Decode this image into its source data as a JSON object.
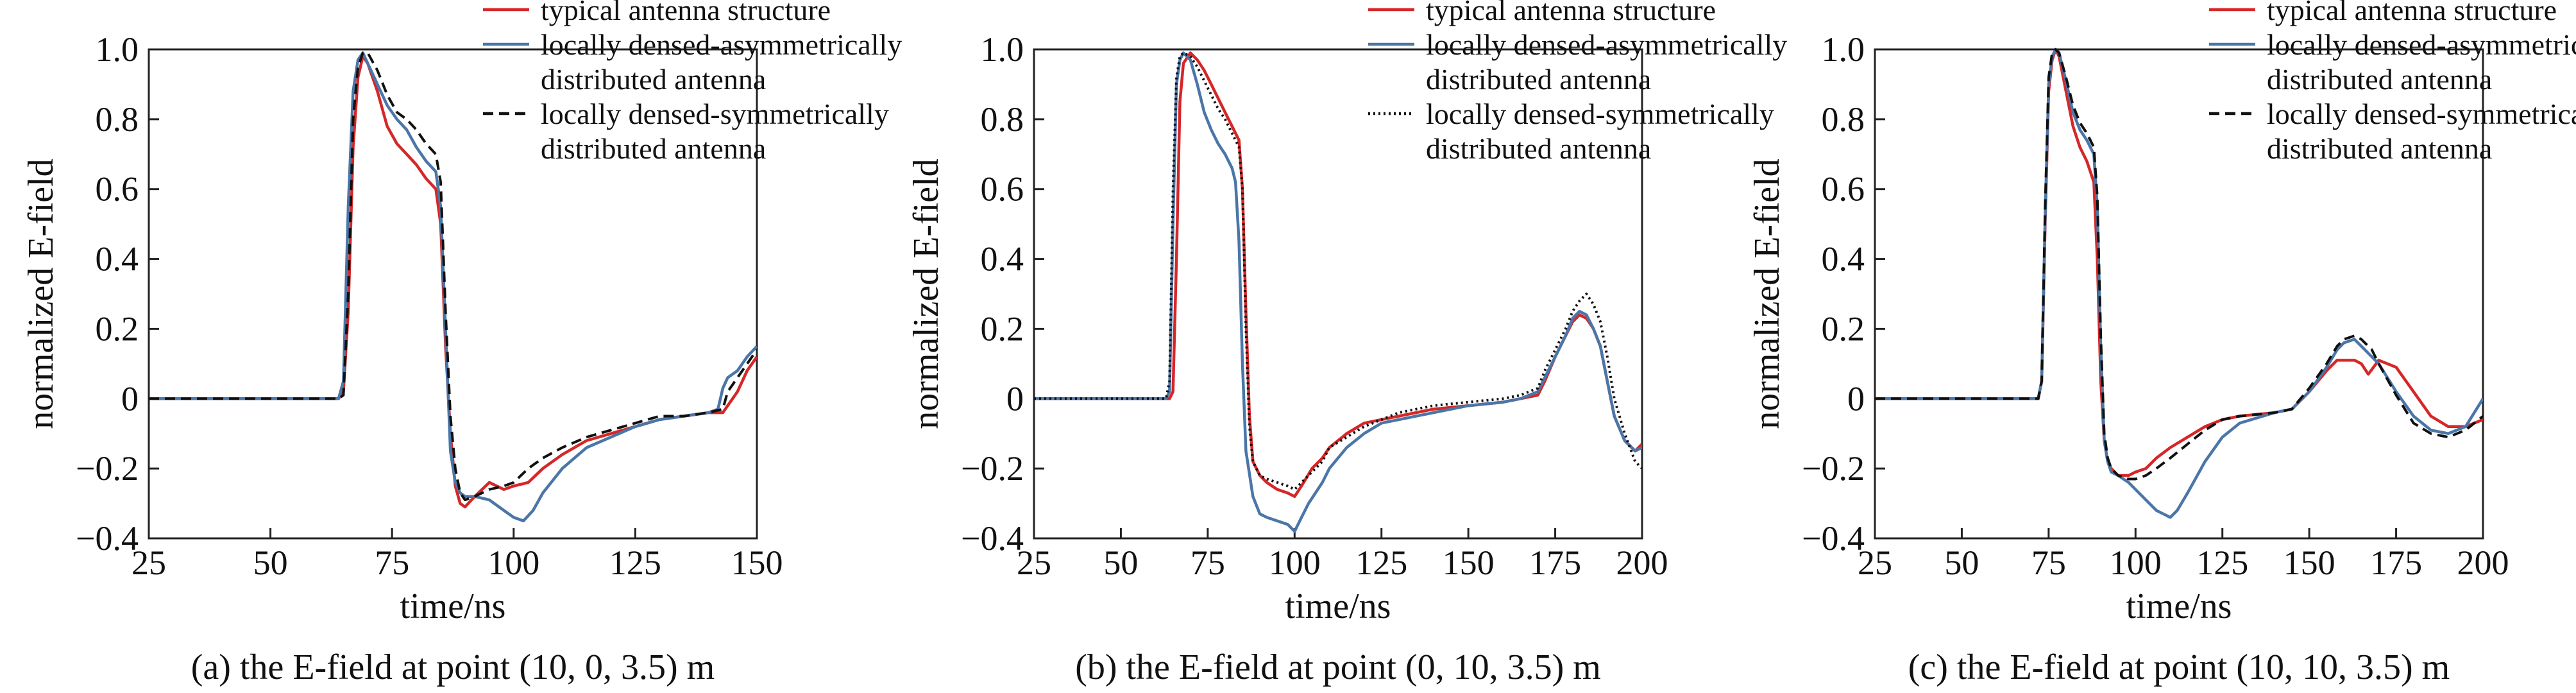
{
  "figure": {
    "legend_labels": [
      "typical antenna structure",
      "locally densed-asymmetrically distributed antenna",
      "locally densed-symmetrically distributed antenna"
    ]
  },
  "colors": {
    "typical": "#d62728",
    "asymmetric": "#4a76a8",
    "symmetric": "#111111",
    "axis": "#222222"
  },
  "chart_data": [
    {
      "type": "line",
      "caption": "(a) the E-field at point (10, 0, 3.5) m",
      "xlabel": "time/ns",
      "ylabel": "normalized E-field",
      "xlim": [
        25,
        150
      ],
      "ylim": [
        -0.4,
        1.0
      ],
      "xticks": [
        25,
        50,
        75,
        100,
        125,
        150
      ],
      "yticks": [
        -0.4,
        -0.2,
        0,
        0.2,
        0.4,
        0.6,
        0.8,
        1.0
      ],
      "ytick_labels": [
        "−0.4",
        "−0.2",
        "0",
        "0.2",
        "0.4",
        "0.6",
        "0.8",
        "1.0"
      ],
      "grid": false,
      "legend_position": "top-right",
      "series": [
        {
          "name": "typical antenna structure",
          "style": "solid",
          "x": [
            25,
            64,
            65,
            66,
            67,
            68,
            69,
            70,
            72,
            74,
            76,
            78,
            80,
            82,
            84,
            85,
            86,
            87,
            88,
            89,
            90,
            92,
            95,
            98,
            100,
            103,
            106,
            110,
            115,
            120,
            125,
            130,
            135,
            140,
            143,
            144,
            146,
            148,
            150
          ],
          "y": [
            0,
            0,
            0.02,
            0.25,
            0.72,
            0.92,
            0.98,
            0.96,
            0.88,
            0.78,
            0.73,
            0.7,
            0.67,
            0.63,
            0.6,
            0.5,
            0.15,
            -0.1,
            -0.25,
            -0.3,
            -0.31,
            -0.28,
            -0.24,
            -0.26,
            -0.25,
            -0.24,
            -0.2,
            -0.16,
            -0.12,
            -0.1,
            -0.08,
            -0.06,
            -0.05,
            -0.04,
            -0.04,
            -0.02,
            0.02,
            0.08,
            0.12
          ]
        },
        {
          "name": "locally densed-asymmetrically distributed antenna",
          "style": "solid",
          "x": [
            25,
            63,
            64,
            65,
            66,
            67,
            68,
            69,
            70,
            72,
            74,
            76,
            78,
            80,
            82,
            84,
            85,
            86,
            87,
            88,
            89,
            90,
            92,
            95,
            98,
            100,
            102,
            104,
            106,
            110,
            115,
            120,
            125,
            130,
            135,
            140,
            142,
            143,
            144,
            146,
            148,
            150
          ],
          "y": [
            0,
            0,
            0,
            0.05,
            0.55,
            0.88,
            0.97,
            0.99,
            0.96,
            0.9,
            0.84,
            0.8,
            0.77,
            0.72,
            0.68,
            0.65,
            0.55,
            0.2,
            -0.15,
            -0.24,
            -0.27,
            -0.28,
            -0.28,
            -0.29,
            -0.32,
            -0.34,
            -0.35,
            -0.32,
            -0.27,
            -0.2,
            -0.14,
            -0.11,
            -0.08,
            -0.06,
            -0.05,
            -0.04,
            -0.03,
            0.03,
            0.06,
            0.08,
            0.12,
            0.15
          ]
        },
        {
          "name": "locally densed-symmetrically distributed antenna",
          "style": "dashed",
          "x": [
            25,
            64,
            65,
            66,
            67,
            68,
            69,
            70,
            72,
            74,
            76,
            78,
            80,
            82,
            84,
            85,
            86,
            87,
            88,
            89,
            90,
            92,
            95,
            98,
            100,
            103,
            106,
            110,
            115,
            120,
            125,
            130,
            135,
            140,
            143,
            144,
            146,
            148,
            150
          ],
          "y": [
            0,
            0,
            0.01,
            0.3,
            0.8,
            0.95,
            0.99,
            0.99,
            0.94,
            0.87,
            0.82,
            0.8,
            0.77,
            0.73,
            0.7,
            0.62,
            0.25,
            -0.05,
            -0.2,
            -0.27,
            -0.29,
            -0.28,
            -0.26,
            -0.25,
            -0.24,
            -0.2,
            -0.17,
            -0.14,
            -0.11,
            -0.09,
            -0.07,
            -0.05,
            -0.05,
            -0.04,
            -0.03,
            0.02,
            0.06,
            0.1,
            0.14
          ]
        }
      ]
    },
    {
      "type": "line",
      "caption": "(b) the E-field at point (0, 10, 3.5) m",
      "xlabel": "time/ns",
      "ylabel": "normalized E-field",
      "xlim": [
        25,
        200
      ],
      "ylim": [
        -0.4,
        1.0
      ],
      "xticks": [
        25,
        50,
        75,
        100,
        125,
        150,
        175,
        200
      ],
      "yticks": [
        -0.4,
        -0.2,
        0,
        0.2,
        0.4,
        0.6,
        0.8,
        1.0
      ],
      "ytick_labels": [
        "−0.4",
        "−0.2",
        "0",
        "0.2",
        "0.4",
        "0.6",
        "0.8",
        "1.0"
      ],
      "grid": false,
      "legend_position": "top-right",
      "series": [
        {
          "name": "typical antenna structure",
          "style": "solid",
          "x": [
            25,
            64,
            65,
            66,
            67,
            68,
            70,
            72,
            74,
            76,
            78,
            80,
            82,
            84,
            85,
            86,
            87,
            88,
            90,
            92,
            95,
            98,
            100,
            102,
            105,
            108,
            110,
            115,
            120,
            125,
            130,
            140,
            150,
            160,
            165,
            170,
            172,
            175,
            178,
            180,
            182,
            184,
            186,
            188,
            190,
            192,
            195,
            198,
            200
          ],
          "y": [
            0,
            0,
            0.02,
            0.4,
            0.85,
            0.96,
            0.99,
            0.97,
            0.94,
            0.9,
            0.86,
            0.82,
            0.78,
            0.74,
            0.6,
            0.25,
            -0.05,
            -0.18,
            -0.22,
            -0.24,
            -0.26,
            -0.27,
            -0.28,
            -0.25,
            -0.2,
            -0.17,
            -0.14,
            -0.1,
            -0.07,
            -0.06,
            -0.05,
            -0.03,
            -0.02,
            -0.01,
            0.0,
            0.01,
            0.05,
            0.12,
            0.18,
            0.22,
            0.24,
            0.23,
            0.2,
            0.15,
            0.05,
            -0.05,
            -0.12,
            -0.15,
            -0.13
          ]
        },
        {
          "name": "locally densed-asymmetrically distributed antenna",
          "style": "solid",
          "x": [
            25,
            63,
            64,
            65,
            66,
            67,
            68,
            70,
            72,
            74,
            76,
            78,
            80,
            82,
            83,
            84,
            85,
            86,
            88,
            90,
            92,
            95,
            98,
            100,
            102,
            104,
            106,
            108,
            110,
            115,
            120,
            125,
            130,
            140,
            150,
            160,
            165,
            170,
            172,
            175,
            178,
            180,
            182,
            184,
            186,
            188,
            190,
            192,
            195,
            198,
            200
          ],
          "y": [
            0,
            0,
            0.02,
            0.5,
            0.9,
            0.97,
            0.99,
            0.97,
            0.9,
            0.82,
            0.77,
            0.73,
            0.7,
            0.66,
            0.62,
            0.45,
            0.1,
            -0.15,
            -0.28,
            -0.33,
            -0.34,
            -0.35,
            -0.36,
            -0.38,
            -0.34,
            -0.3,
            -0.27,
            -0.24,
            -0.2,
            -0.14,
            -0.1,
            -0.07,
            -0.06,
            -0.04,
            -0.02,
            -0.01,
            0.0,
            0.02,
            0.06,
            0.12,
            0.18,
            0.23,
            0.25,
            0.24,
            0.2,
            0.15,
            0.05,
            -0.05,
            -0.12,
            -0.15,
            -0.14
          ]
        },
        {
          "name": "locally densed-symmetrically distributed antenna",
          "style": "dotted",
          "x": [
            25,
            63,
            64,
            65,
            66,
            67,
            68,
            70,
            72,
            74,
            76,
            78,
            80,
            82,
            84,
            85,
            86,
            87,
            88,
            90,
            92,
            95,
            98,
            100,
            102,
            105,
            108,
            110,
            115,
            120,
            125,
            130,
            140,
            150,
            160,
            165,
            170,
            172,
            175,
            178,
            180,
            182,
            184,
            186,
            188,
            190,
            192,
            195,
            198,
            200
          ],
          "y": [
            0,
            0,
            0.05,
            0.6,
            0.92,
            0.98,
            0.99,
            0.98,
            0.95,
            0.91,
            0.87,
            0.83,
            0.8,
            0.76,
            0.72,
            0.6,
            0.2,
            -0.08,
            -0.18,
            -0.22,
            -0.23,
            -0.24,
            -0.25,
            -0.26,
            -0.24,
            -0.21,
            -0.18,
            -0.14,
            -0.11,
            -0.08,
            -0.06,
            -0.04,
            -0.02,
            -0.01,
            0.0,
            0.01,
            0.03,
            0.08,
            0.14,
            0.2,
            0.25,
            0.28,
            0.3,
            0.27,
            0.22,
            0.12,
            0.0,
            -0.1,
            -0.18,
            -0.2
          ]
        }
      ]
    },
    {
      "type": "line",
      "caption": "(c) the E-field at point (10, 10, 3.5) m",
      "xlabel": "time/ns",
      "ylabel": "normalized E-field",
      "xlim": [
        25,
        200
      ],
      "ylim": [
        -0.4,
        1.0
      ],
      "xticks": [
        25,
        50,
        75,
        100,
        125,
        150,
        175,
        200
      ],
      "yticks": [
        -0.4,
        -0.2,
        0,
        0.2,
        0.4,
        0.6,
        0.8,
        1.0
      ],
      "ytick_labels": [
        "−0.4",
        "−0.2",
        "0",
        "0.2",
        "0.4",
        "0.6",
        "0.8",
        "1.0"
      ],
      "grid": false,
      "legend_position": "top-right",
      "series": [
        {
          "name": "typical antenna structure",
          "style": "solid",
          "x": [
            25,
            72,
            73,
            74,
            75,
            76,
            77,
            78,
            80,
            82,
            84,
            86,
            88,
            89,
            90,
            91,
            92,
            93,
            95,
            98,
            100,
            103,
            106,
            110,
            115,
            120,
            125,
            130,
            140,
            145,
            150,
            155,
            158,
            160,
            163,
            165,
            167,
            170,
            175,
            180,
            185,
            190,
            195,
            200
          ],
          "y": [
            0,
            0,
            0.05,
            0.5,
            0.88,
            0.97,
            1.0,
            0.98,
            0.88,
            0.78,
            0.72,
            0.68,
            0.62,
            0.4,
            0.05,
            -0.12,
            -0.18,
            -0.2,
            -0.22,
            -0.22,
            -0.21,
            -0.2,
            -0.17,
            -0.14,
            -0.11,
            -0.08,
            -0.06,
            -0.05,
            -0.04,
            -0.03,
            0.02,
            0.08,
            0.11,
            0.11,
            0.11,
            0.1,
            0.07,
            0.11,
            0.09,
            0.02,
            -0.05,
            -0.08,
            -0.08,
            -0.06
          ]
        },
        {
          "name": "locally densed-asymmetrically distributed antenna",
          "style": "solid",
          "x": [
            25,
            72,
            73,
            74,
            75,
            76,
            77,
            78,
            80,
            82,
            84,
            86,
            88,
            89,
            90,
            91,
            92,
            93,
            95,
            98,
            100,
            102,
            104,
            106,
            108,
            110,
            112,
            115,
            120,
            125,
            130,
            140,
            145,
            150,
            155,
            158,
            160,
            163,
            165,
            170,
            175,
            180,
            185,
            190,
            195,
            200
          ],
          "y": [
            0,
            0,
            0.05,
            0.52,
            0.9,
            0.98,
            1.0,
            0.99,
            0.91,
            0.82,
            0.77,
            0.74,
            0.7,
            0.55,
            0.15,
            -0.12,
            -0.18,
            -0.21,
            -0.22,
            -0.24,
            -0.26,
            -0.28,
            -0.3,
            -0.32,
            -0.33,
            -0.34,
            -0.32,
            -0.27,
            -0.18,
            -0.11,
            -0.07,
            -0.04,
            -0.03,
            0.02,
            0.09,
            0.14,
            0.16,
            0.17,
            0.15,
            0.1,
            0.02,
            -0.05,
            -0.09,
            -0.1,
            -0.08,
            0.0
          ]
        },
        {
          "name": "locally densed-symmetrically distributed antenna",
          "style": "dashed",
          "x": [
            25,
            72,
            73,
            74,
            75,
            76,
            77,
            78,
            80,
            82,
            84,
            86,
            88,
            89,
            90,
            91,
            92,
            93,
            95,
            98,
            100,
            103,
            106,
            110,
            115,
            120,
            125,
            130,
            140,
            145,
            150,
            155,
            158,
            160,
            163,
            165,
            168,
            170,
            175,
            180,
            185,
            190,
            195,
            200
          ],
          "y": [
            0,
            0,
            0.05,
            0.55,
            0.92,
            0.99,
            1.0,
            0.99,
            0.92,
            0.84,
            0.79,
            0.76,
            0.72,
            0.58,
            0.18,
            -0.1,
            -0.17,
            -0.2,
            -0.22,
            -0.23,
            -0.23,
            -0.22,
            -0.2,
            -0.17,
            -0.13,
            -0.09,
            -0.06,
            -0.05,
            -0.04,
            -0.03,
            0.03,
            0.1,
            0.15,
            0.17,
            0.18,
            0.17,
            0.14,
            0.1,
            0.01,
            -0.07,
            -0.1,
            -0.11,
            -0.09,
            -0.05
          ]
        }
      ]
    }
  ]
}
